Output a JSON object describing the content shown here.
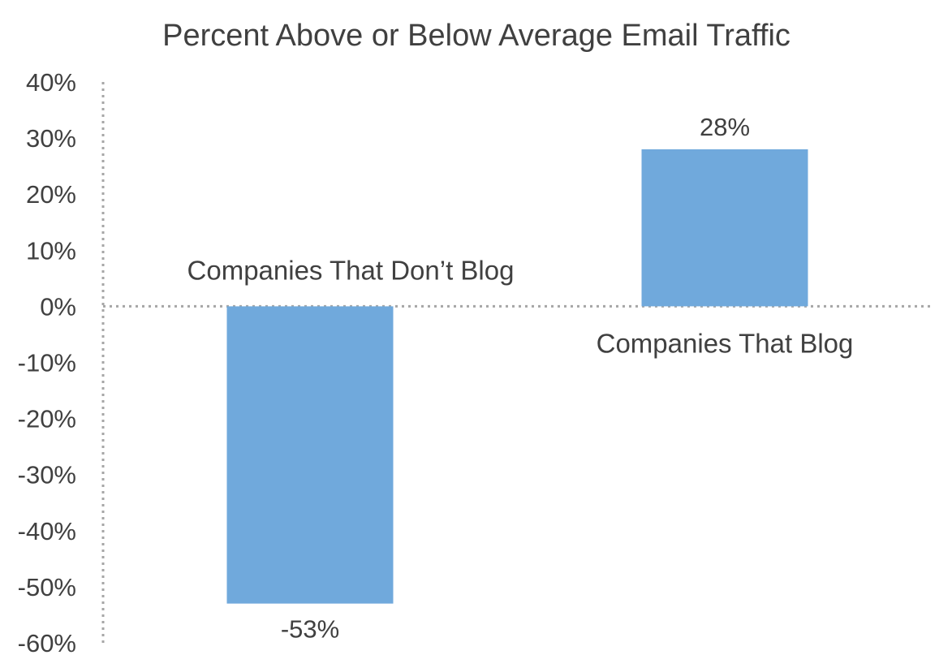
{
  "chart_data": {
    "type": "bar",
    "title": "Percent Above or Below Average Email Traffic",
    "categories": [
      "Companies That Don’t Blog",
      "Companies That Blog"
    ],
    "values": [
      -53,
      28
    ],
    "data_labels": [
      "-53%",
      "28%"
    ],
    "ylim": [
      -60,
      40
    ],
    "yticks": [
      40,
      30,
      20,
      10,
      0,
      -10,
      -20,
      -30,
      -40,
      -50,
      -60
    ],
    "ytick_labels": [
      "40%",
      "30%",
      "20%",
      "10%",
      "0%",
      "-10%",
      "-20%",
      "-30%",
      "-40%",
      "-50%",
      "-60%"
    ],
    "grid": false,
    "legend": "none",
    "bar_color": "#70a9dc"
  }
}
